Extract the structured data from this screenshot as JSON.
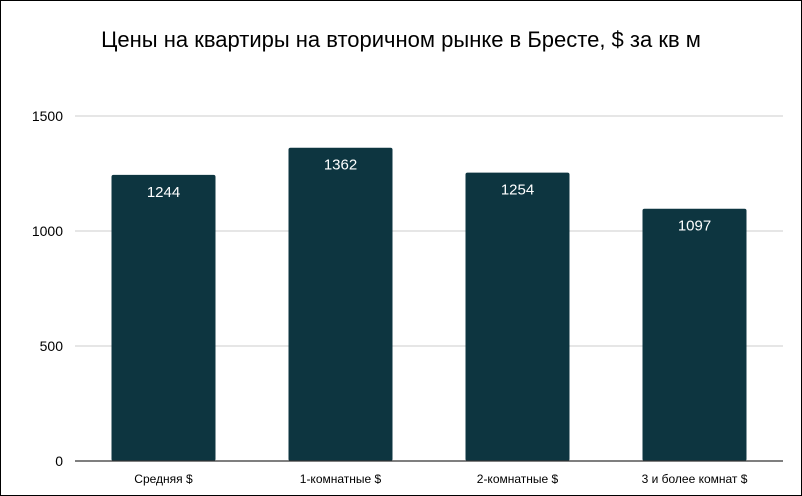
{
  "chart_data": {
    "type": "bar",
    "title": "Цены на квартиры на вторичном рынке в Бресте, $ за кв м",
    "categories": [
      "Средняя $",
      "1-комнатные $",
      "2-комнатные $",
      "3 и более комнат $"
    ],
    "values": [
      1244,
      1362,
      1254,
      1097
    ],
    "data_labels": [
      "1244",
      "1362",
      "1254",
      "1097"
    ],
    "yticks": [
      0,
      500,
      1000,
      1500
    ],
    "ytick_labels": [
      "0",
      "500",
      "1000",
      "1500"
    ],
    "ylim": [
      0,
      1500
    ],
    "grid": true,
    "legend": "none",
    "xlabel": "",
    "ylabel": ""
  },
  "colors": {
    "bar": "#0d3540",
    "grid": "#cccccc",
    "axis": "#333333",
    "data_label": "#ffffff"
  }
}
